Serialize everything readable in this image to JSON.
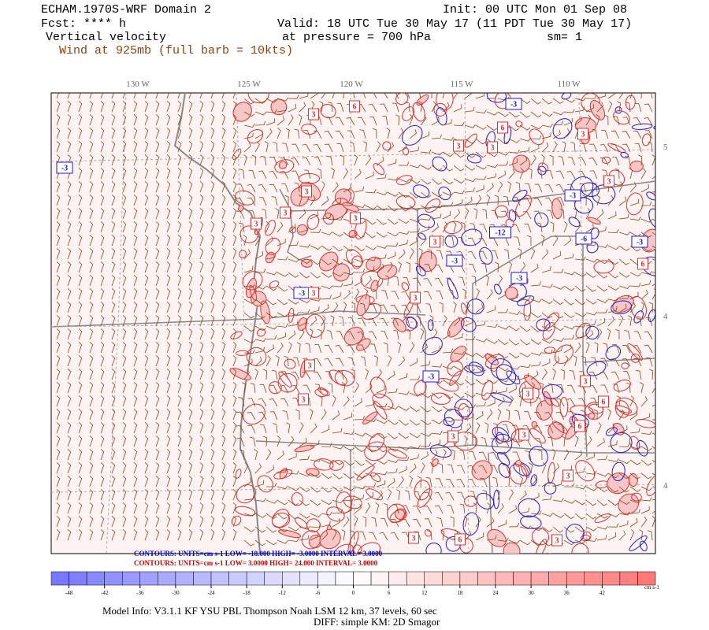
{
  "header": {
    "title": "ECHAM.1970S-WRF Domain 2",
    "init": "Init: 00 UTC Mon 01 Sep 08",
    "fcst": "Fcst: **** h",
    "valid": "Valid: 18 UTC Tue 30 May 17 (11 PDT Tue 30 May 17)",
    "field": "Vertical velocity",
    "level": "at pressure =  700 hPa",
    "smoothing": "sm= 1",
    "wind": "Wind at 925mb (full barb = 10kts)"
  },
  "map": {
    "lon_labels": [
      "130 W",
      "125 W",
      "120 W",
      "115 W",
      "110 W"
    ],
    "lat_labels": [
      "5",
      "4",
      "4"
    ],
    "contour_labels": [
      "6",
      "-3",
      "3",
      "3",
      "6",
      "3",
      "3",
      "3",
      "-3",
      "3",
      "3",
      "3",
      "3",
      "-3",
      "3",
      "-12",
      "-6",
      "-3",
      "6",
      "-3",
      "-3",
      "-3",
      "3",
      "3",
      "3",
      "-3",
      "3",
      "3",
      "3",
      "6",
      "6",
      "3",
      "3",
      "3",
      "3",
      "6",
      "3"
    ]
  },
  "contour_info": [
    "CONTOURS:  UNITS=cm s-1  LOW= -18.000  HIGH= -3.0000  INTERVAL= 3.0000",
    "CONTOURS:  UNITS=cm s-1  LOW=  3.0000  HIGH=  24.000  INTERVAL= 3.0000"
  ],
  "colorbar": {
    "ticks": [
      -48,
      -42,
      -36,
      -30,
      -24,
      -18,
      -12,
      -6,
      0,
      6,
      12,
      18,
      24,
      30,
      36,
      42
    ],
    "unit": "cm s-1"
  },
  "footer": [
    "Model Info: V3.1.1    KF      YSU PBL   Thompson     Noah LSM  12 km,    37 levels,    60 sec",
    "DIFF: simple KM: 2D Smagor"
  ]
}
